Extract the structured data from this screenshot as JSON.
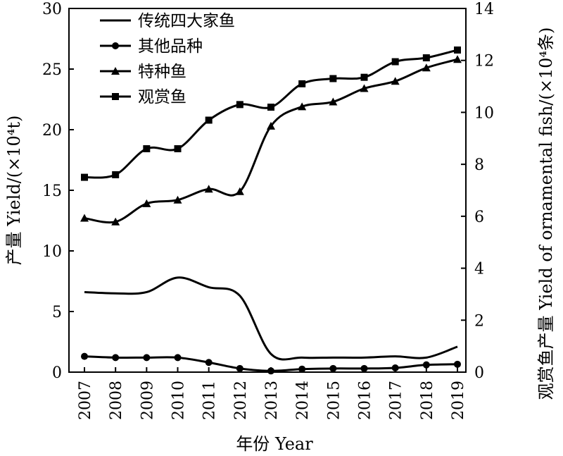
{
  "chart_data": {
    "type": "line",
    "categories": [
      "2007",
      "2008",
      "2009",
      "2010",
      "2011",
      "2012",
      "2013",
      "2014",
      "2015",
      "2016",
      "2017",
      "2018",
      "2019"
    ],
    "xlabel": "年份 Year",
    "ylabel": "产量 Yield/(×10⁴t)",
    "y2label": "观赏鱼产量 Yield of ornamental fish/(×10⁴条)",
    "ylim": [
      0,
      30
    ],
    "yticks": [
      0,
      5,
      10,
      15,
      20,
      25,
      30
    ],
    "y2lim": [
      0,
      14
    ],
    "y2ticks": [
      0,
      2,
      4,
      6,
      8,
      10,
      12,
      14
    ],
    "grid": false,
    "legend_position": "top-left",
    "series": [
      {
        "name": "传统四大家鱼",
        "axis": "left",
        "marker": "none",
        "values": [
          6.6,
          6.5,
          6.6,
          7.8,
          7.0,
          6.3,
          1.5,
          1.2,
          1.2,
          1.2,
          1.3,
          1.2,
          2.1
        ]
      },
      {
        "name": "其他品种",
        "axis": "left",
        "marker": "circle",
        "values": [
          1.3,
          1.2,
          1.2,
          1.2,
          0.8,
          0.3,
          0.1,
          0.25,
          0.3,
          0.3,
          0.35,
          0.6,
          0.65
        ]
      },
      {
        "name": "特种鱼",
        "axis": "left",
        "marker": "triangle",
        "values": [
          12.7,
          12.4,
          13.9,
          14.2,
          15.1,
          14.9,
          20.3,
          21.9,
          22.3,
          23.4,
          24.0,
          25.1,
          25.8
        ]
      },
      {
        "name": "观赏鱼",
        "axis": "right",
        "marker": "square",
        "values": [
          7.5,
          7.6,
          8.6,
          8.6,
          9.7,
          10.3,
          10.2,
          11.1,
          11.3,
          11.35,
          11.95,
          12.1,
          12.4
        ]
      }
    ]
  }
}
